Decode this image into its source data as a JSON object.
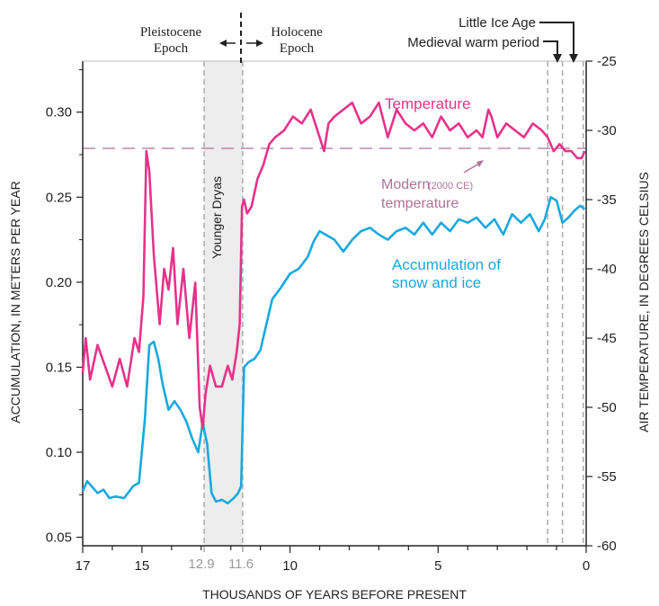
{
  "chart_data": {
    "type": "line",
    "xlabel": "THOUSANDS OF YEARS BEFORE PRESENT",
    "ylabel_left": "ACCUMULATION, IN METERS PER YEAR",
    "ylabel_right": "AIR TEMPERATURE, IN DEGREES CELSIUS",
    "xlim": [
      17,
      0
    ],
    "ylim_left": [
      0.045,
      0.33
    ],
    "ylim_right": [
      -60,
      -25
    ],
    "x_ticks": [
      17,
      15,
      10,
      5,
      0
    ],
    "y_left_ticks": [
      "0.05",
      "0.10",
      "0.15",
      "0.20",
      "0.25",
      "0.30"
    ],
    "y_right_ticks": [
      "-25",
      "-30",
      "-35",
      "-40",
      "-45",
      "-50",
      "-55",
      "-60"
    ],
    "grid": false,
    "colors": {
      "temperature": "#e5338a",
      "accumulation": "#19a9df",
      "modern": "#b0729a",
      "dashed_lines": "#aaaaaa",
      "shading": "#ededed"
    },
    "series": [
      {
        "name": "Temperature",
        "axis": "right",
        "x": [
          17,
          16.9,
          16.75,
          16.5,
          16.25,
          16,
          15.75,
          15.5,
          15.25,
          15.1,
          14.95,
          14.85,
          14.75,
          14.6,
          14.4,
          14.25,
          14.1,
          13.95,
          13.8,
          13.6,
          13.4,
          13.2,
          13.05,
          12.95,
          12.85,
          12.7,
          12.5,
          12.3,
          12.1,
          11.95,
          11.8,
          11.7,
          11.62,
          11.55,
          11.45,
          11.3,
          11.1,
          10.9,
          10.7,
          10.5,
          10.2,
          9.9,
          9.6,
          9.3,
          9.0,
          8.85,
          8.7,
          8.5,
          8.2,
          7.9,
          7.6,
          7.3,
          7.0,
          6.7,
          6.4,
          6.1,
          5.8,
          5.5,
          5.2,
          4.9,
          4.6,
          4.3,
          4.0,
          3.7,
          3.5,
          3.3,
          3.2,
          3.0,
          2.7,
          2.4,
          2.1,
          1.8,
          1.5,
          1.3,
          1.1,
          0.9,
          0.7,
          0.5,
          0.3,
          0.15,
          0.05
        ],
        "y": [
          -47.5,
          -45,
          -48,
          -45.5,
          -47,
          -48.5,
          -46.5,
          -48.5,
          -45,
          -46,
          -42,
          -31.5,
          -33,
          -39,
          -44,
          -40,
          -41.5,
          -38.5,
          -44,
          -40,
          -45,
          -41,
          -50,
          -51.5,
          -49,
          -47,
          -48.5,
          -48.5,
          -47,
          -48,
          -46,
          -44,
          -35.5,
          -35,
          -36,
          -35.5,
          -33.5,
          -32.5,
          -31,
          -30.5,
          -30,
          -29,
          -29.5,
          -28.5,
          -30.5,
          -31.5,
          -29.5,
          -29,
          -28.5,
          -28,
          -29.5,
          -29,
          -28,
          -30.5,
          -28.5,
          -29.5,
          -30,
          -29.5,
          -30.5,
          -29,
          -30,
          -29.5,
          -30.5,
          -30,
          -30.5,
          -28.5,
          -29,
          -30.5,
          -29.5,
          -30,
          -30.5,
          -29.5,
          -30,
          -30.5,
          -31.5,
          -31,
          -31.5,
          -31.5,
          -32,
          -32,
          -31.5
        ]
      },
      {
        "name": "Accumulation of snow and ice",
        "axis": "left",
        "x": [
          17,
          16.85,
          16.7,
          16.5,
          16.3,
          16.1,
          15.9,
          15.6,
          15.3,
          15.1,
          14.9,
          14.75,
          14.6,
          14.45,
          14.3,
          14.1,
          13.9,
          13.7,
          13.5,
          13.3,
          13.1,
          12.95,
          12.8,
          12.65,
          12.5,
          12.3,
          12.1,
          11.9,
          11.75,
          11.65,
          11.55,
          11.4,
          11.2,
          11.0,
          10.8,
          10.6,
          10.3,
          10.0,
          9.7,
          9.4,
          9.2,
          9.0,
          8.8,
          8.5,
          8.2,
          7.9,
          7.6,
          7.3,
          7.0,
          6.7,
          6.4,
          6.1,
          5.8,
          5.5,
          5.2,
          4.9,
          4.6,
          4.3,
          4.0,
          3.7,
          3.4,
          3.1,
          2.8,
          2.5,
          2.2,
          1.9,
          1.6,
          1.4,
          1.2,
          1.0,
          0.8,
          0.6,
          0.4,
          0.2,
          0.05
        ],
        "y": [
          0.077,
          0.083,
          0.08,
          0.076,
          0.078,
          0.073,
          0.074,
          0.073,
          0.08,
          0.082,
          0.12,
          0.163,
          0.165,
          0.155,
          0.14,
          0.125,
          0.13,
          0.125,
          0.118,
          0.108,
          0.1,
          0.117,
          0.105,
          0.076,
          0.071,
          0.072,
          0.07,
          0.073,
          0.076,
          0.08,
          0.15,
          0.153,
          0.155,
          0.16,
          0.175,
          0.19,
          0.197,
          0.205,
          0.208,
          0.215,
          0.224,
          0.23,
          0.228,
          0.225,
          0.218,
          0.225,
          0.23,
          0.232,
          0.228,
          0.225,
          0.23,
          0.232,
          0.228,
          0.235,
          0.228,
          0.235,
          0.23,
          0.237,
          0.235,
          0.238,
          0.232,
          0.237,
          0.228,
          0.24,
          0.235,
          0.24,
          0.23,
          0.237,
          0.25,
          0.248,
          0.235,
          0.238,
          0.242,
          0.245,
          0.243
        ]
      }
    ],
    "reference_lines": {
      "modern_temperature": -31.3,
      "younger_dryas_start": 12.9,
      "younger_dryas_end": 11.6,
      "medieval_warm_period": 1.3,
      "little_ice_age_start": 0.8,
      "little_ice_age_end": 0.1
    },
    "labels": {
      "temperature": "Temperature",
      "modern_line1": "Modern",
      "modern_note": "(2000 CE)",
      "modern_line2": "temperature",
      "accum_line1": "Accumulation of",
      "accum_line2": "snow and ice",
      "younger_dryas": "Younger Dryas",
      "yd_start_label": "12.9",
      "yd_end_label": "11.6",
      "pleistocene_line1": "Pleistocene",
      "pleistocene_line2": "Epoch",
      "holocene_line1": "Holocene",
      "holocene_line2": "Epoch",
      "little_ice_age": "Little Ice Age",
      "medieval_warm_period": "Medieval warm period"
    }
  }
}
